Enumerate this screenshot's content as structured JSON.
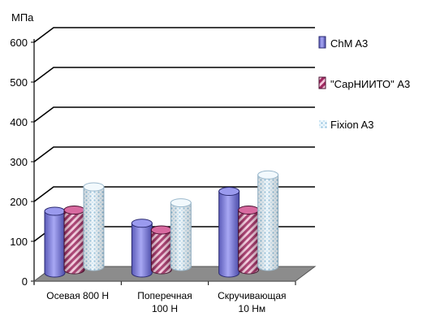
{
  "chart_data": {
    "type": "bar",
    "ylabel": "МПа",
    "ylim": [
      0,
      600
    ],
    "yticks": [
      0,
      100,
      200,
      300,
      400,
      500,
      600
    ],
    "grid": true,
    "legend_position": "right",
    "categories": [
      [
        "Осевая 800 Н"
      ],
      [
        "Поперечная",
        "100 Н"
      ],
      [
        "Скручивающая",
        "10 Нм"
      ]
    ],
    "series": [
      {
        "name": "ChM A3",
        "values": [
          155,
          125,
          205
        ],
        "color": "#8080e0",
        "pattern": "solid"
      },
      {
        "name": "\"СарНИИТО\" А3",
        "values": [
          150,
          100,
          150
        ],
        "color": "#b0306a",
        "pattern": "diagonal-stripes"
      },
      {
        "name": "Fixion A3",
        "values": [
          200,
          160,
          230
        ],
        "color": "#c8e6f5",
        "pattern": "dotted"
      }
    ]
  }
}
